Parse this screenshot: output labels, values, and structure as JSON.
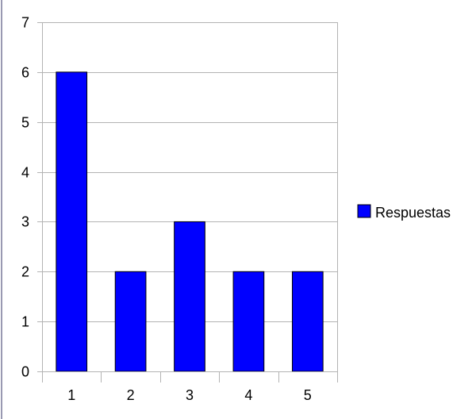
{
  "chart_data": {
    "type": "bar",
    "categories": [
      "1",
      "2",
      "3",
      "4",
      "5"
    ],
    "series": [
      {
        "name": "Respuestas",
        "values": [
          6,
          2,
          3,
          2,
          2
        ]
      }
    ],
    "ylim": [
      0,
      7
    ],
    "yticks": [
      0,
      1,
      2,
      3,
      4,
      5,
      6,
      7
    ],
    "grid": true,
    "legend": "right",
    "colors": {
      "bar": "#0000ff",
      "grid": "#b3b3b3",
      "axis": "#b3b3b3",
      "frame_left": "#333366"
    }
  }
}
